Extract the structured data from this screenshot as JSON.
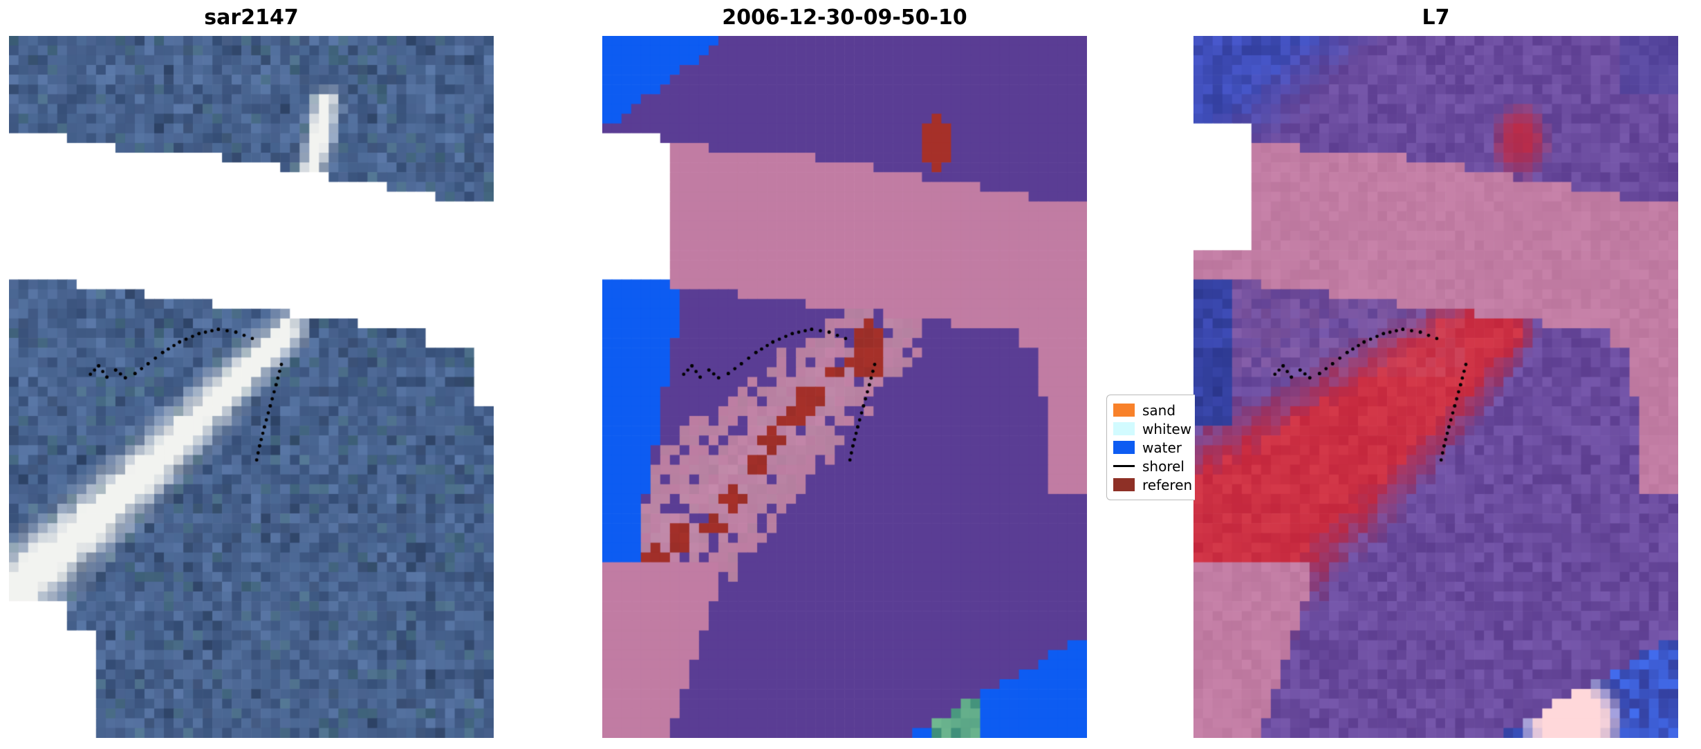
{
  "figure": {
    "background": "#ffffff"
  },
  "legend": {
    "items": [
      {
        "label": "sand",
        "type": "patch",
        "color": "#f8812a"
      },
      {
        "label": "whitew",
        "type": "patch",
        "color": "#d2fbff"
      },
      {
        "label": "water",
        "type": "patch",
        "color": "#0d5cf2"
      },
      {
        "label": "shorel",
        "type": "line",
        "color": "#000000"
      },
      {
        "label": "referen",
        "type": "patch",
        "color": "#8e3026"
      }
    ]
  },
  "chart_data": {
    "type": "heatmap",
    "title": "",
    "layout": "three image panels side by side with class legend between panel 2 and 3",
    "panels": [
      {
        "title": "sar2147",
        "kind": "sar_backscatter_rgb",
        "description": "speckled blue SAR scene with bright white sandbar streak curving from upper middle to lower left; white no-data diagonal band across upper third and white lower-left corner",
        "palette": {
          "water_deep": "#3c547e",
          "water_mid": "#53719f",
          "speckle_green": "#47707c",
          "speckle_dark": "#2f4263",
          "sandbar_bright": "#f2f3f0",
          "nodata_mask": "#ffffff"
        }
      },
      {
        "title": "2006-12-30-09-50-10",
        "kind": "classified_map",
        "description": "classification of same scene: purple other, pink cloud/no-data band, blue water along left edge and lower right, mottled mauve sandbar zone with dark red reference blobs",
        "classes": {
          "other_purple": "#5a3d94",
          "cloud_pink": "#c17ca3",
          "water_blue": "#0d5cf2",
          "reference_red": "#a63029",
          "mixed_mauve": "#b27f9e",
          "whitewater_teal": "#3f8f7a"
        }
      },
      {
        "title": "L7",
        "kind": "landsat_rgb",
        "description": "Landsat-7 false colour: purple land/water, blue upper-left corner and left strip, pink masked band, large bright red sandbar plume sweeping to lower left, bright surf blob lower right",
        "palette": {
          "land_purple": "#6a4b9e",
          "water_blue": "#4858cc",
          "deep_blue": "#3440a0",
          "sand_red": "#c4273d",
          "cloud_pink": "#c17ca3",
          "surf_bright": "#ffd8da"
        }
      }
    ],
    "shoreline_dots_norm_xy": {
      "segments": [
        [
          [
            0.168,
            0.482
          ],
          [
            0.185,
            0.47
          ],
          [
            0.202,
            0.486
          ],
          [
            0.22,
            0.476
          ],
          [
            0.24,
            0.487
          ],
          [
            0.26,
            0.481
          ],
          [
            0.287,
            0.467
          ],
          [
            0.317,
            0.451
          ],
          [
            0.352,
            0.436
          ],
          [
            0.392,
            0.424
          ],
          [
            0.432,
            0.418
          ],
          [
            0.468,
            0.422
          ],
          [
            0.502,
            0.431
          ]
        ],
        [
          [
            0.562,
            0.468
          ],
          [
            0.551,
            0.497
          ],
          [
            0.539,
            0.527
          ],
          [
            0.527,
            0.557
          ],
          [
            0.517,
            0.584
          ],
          [
            0.511,
            0.604
          ]
        ]
      ]
    },
    "nodata_band_norm": {
      "top_edge_left_y": 0.138,
      "top_edge_right_y": 0.234,
      "bottom_edge_left_y": 0.345,
      "bottom_edge_right_y": 0.455
    }
  }
}
